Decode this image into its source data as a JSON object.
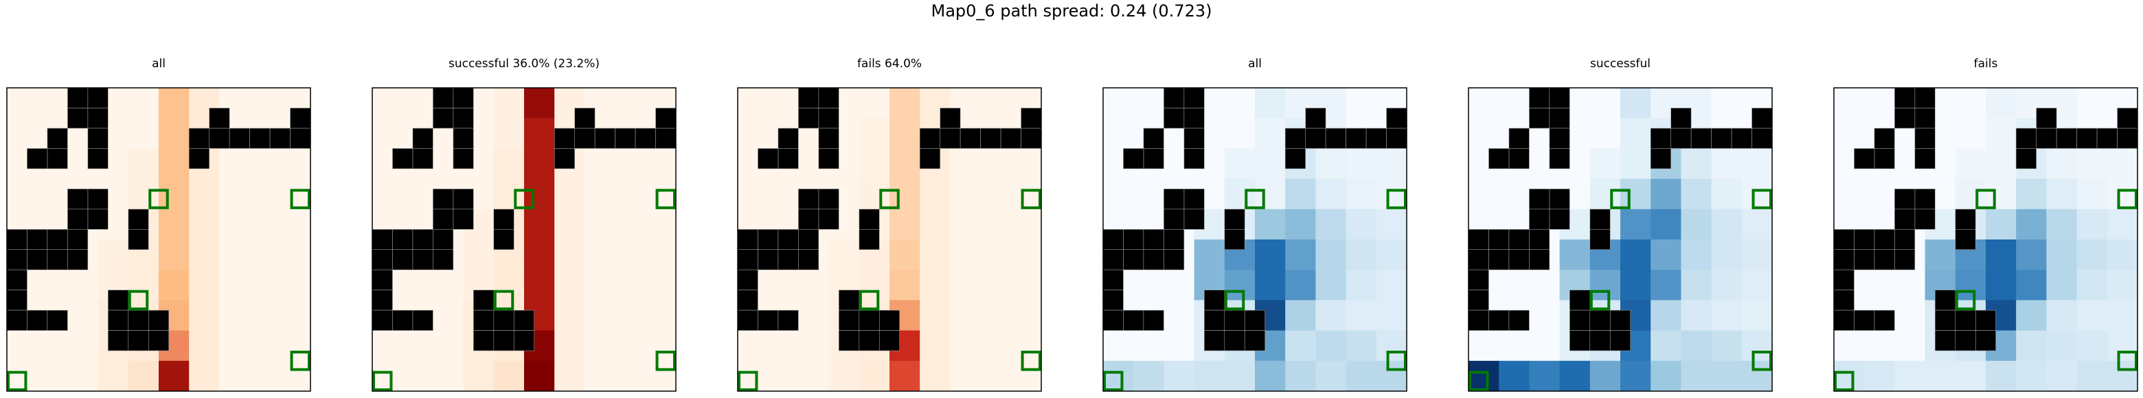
{
  "figure": {
    "title": "Map0_6 path spread: 0.24 (0.723)"
  },
  "palette": {
    "obstacle": "#000000",
    "goal_outline": "#007a00",
    "cell_separator": "#9a9a9a",
    "axes_frame": "#000000",
    "oranges_low": "#fff5eb",
    "oranges_mid": "#fdbe85",
    "oranges_high": "#d7301f",
    "oranges_max": "#7f0000",
    "blues_low": "#f7fbff",
    "blues_mid": "#9ecae1",
    "blues_high": "#2171b5",
    "blues_max": "#08306b"
  },
  "chart_data": [
    {
      "type": "heatmap",
      "title": "all",
      "colormap": "oranges",
      "rows": 10,
      "cols": 10,
      "obstacles": [
        [
          0,
          3
        ],
        [
          1,
          3
        ],
        [
          1,
          2
        ],
        [
          2,
          3
        ],
        [
          2,
          1
        ],
        [
          2,
          6
        ],
        [
          2,
          7
        ],
        [
          2,
          8
        ],
        [
          2,
          9
        ],
        [
          1,
          9
        ],
        [
          3,
          0
        ],
        [
          5,
          2
        ],
        [
          6,
          2
        ],
        [
          5,
          4
        ],
        [
          6,
          0
        ],
        [
          6,
          1
        ],
        [
          7,
          0
        ],
        [
          8,
          0
        ],
        [
          8,
          1
        ],
        [
          8,
          3
        ],
        [
          9,
          3
        ],
        [
          9,
          4
        ],
        [
          10,
          3
        ],
        [
          10,
          4
        ],
        [
          10,
          2
        ],
        [
          11,
          5
        ],
        [
          11,
          6
        ],
        [
          11,
          7
        ],
        [
          11,
          8
        ],
        [
          11,
          9
        ],
        [
          1,
          6
        ]
      ],
      "goals": [
        [
          3,
          5
        ],
        [
          6,
          9
        ],
        [
          4,
          9
        ],
        [
          12,
          0
        ]
      ],
      "values": [
        [
          0,
          0,
          0,
          0,
          0,
          3,
          0.6,
          0,
          0,
          0
        ],
        [
          0,
          0,
          0,
          0,
          0,
          3,
          0.6,
          0,
          0,
          0
        ],
        [
          0,
          0,
          0,
          0,
          0.3,
          3,
          0.6,
          0,
          0,
          0
        ],
        [
          0,
          0,
          0,
          0,
          0.3,
          3,
          0.6,
          0,
          0,
          0
        ],
        [
          0,
          0,
          0,
          0,
          0.5,
          3,
          0.6,
          0,
          0,
          0
        ],
        [
          0,
          0,
          0,
          0.3,
          0.5,
          3,
          0.6,
          0,
          0,
          0
        ],
        [
          0,
          0,
          0,
          0.3,
          0.5,
          3.3,
          0.6,
          0,
          0,
          0
        ],
        [
          0,
          0,
          0,
          0.5,
          0.6,
          3.5,
          0.6,
          0,
          0,
          0
        ],
        [
          0,
          0,
          0,
          0.5,
          0.6,
          4.5,
          0.6,
          0,
          0,
          0
        ],
        [
          0,
          0,
          0,
          0.5,
          1,
          8.5,
          0.6,
          0,
          0,
          0
        ]
      ]
    },
    {
      "type": "heatmap",
      "title": "successful 36.0% (23.2%)",
      "colormap": "oranges",
      "rows": 10,
      "cols": 10,
      "values": [
        [
          0,
          0,
          0,
          0,
          0.3,
          9,
          0.3,
          0,
          0,
          0
        ],
        [
          0,
          0,
          0,
          0,
          0.3,
          8,
          0.3,
          0,
          0,
          0
        ],
        [
          0,
          0,
          0,
          0,
          0.5,
          8,
          0.3,
          0,
          0,
          0
        ],
        [
          0,
          0,
          0,
          0,
          0.5,
          8,
          0.3,
          0,
          0,
          0
        ],
        [
          0,
          0,
          0,
          0.3,
          0.6,
          8,
          0.3,
          0,
          0,
          0
        ],
        [
          0,
          0,
          0,
          0.3,
          0.6,
          8,
          0.3,
          0,
          0,
          0
        ],
        [
          0,
          0,
          0,
          0.3,
          0.6,
          8,
          0.3,
          0,
          0,
          0
        ],
        [
          0,
          0,
          0,
          0.5,
          0.6,
          8,
          0.3,
          0,
          0,
          0
        ],
        [
          0,
          0,
          0,
          0.5,
          0.6,
          9.5,
          0.3,
          0,
          0,
          0
        ],
        [
          0,
          0,
          0,
          0.5,
          1,
          9.8,
          0.3,
          0,
          0,
          0
        ]
      ]
    },
    {
      "type": "heatmap",
      "title": "fails 64.0%",
      "colormap": "oranges",
      "rows": 10,
      "cols": 10,
      "values": [
        [
          0,
          0,
          0,
          0,
          0,
          2,
          0.5,
          0,
          0,
          0
        ],
        [
          0,
          0,
          0,
          0,
          0.2,
          2,
          0.5,
          0,
          0,
          0
        ],
        [
          0,
          0,
          0,
          0,
          0.2,
          2,
          0.5,
          0,
          0,
          0
        ],
        [
          0,
          0,
          0,
          0,
          0.3,
          2,
          0.5,
          0,
          0,
          0
        ],
        [
          0,
          0,
          0,
          0,
          0.3,
          2,
          0.5,
          0,
          0,
          0
        ],
        [
          0,
          0,
          0,
          0.2,
          0.4,
          2.3,
          0.5,
          0,
          0,
          0
        ],
        [
          0,
          0,
          0,
          0.2,
          0.4,
          2.6,
          0.5,
          0,
          0,
          0
        ],
        [
          0,
          0,
          0,
          0.3,
          0.5,
          4,
          0.5,
          0,
          0,
          0
        ],
        [
          0,
          0,
          0,
          0.3,
          0.5,
          7,
          0.5,
          0,
          0,
          0
        ],
        [
          0,
          0,
          0,
          0.3,
          0.6,
          6,
          0.5,
          0,
          0,
          0
        ]
      ]
    },
    {
      "type": "heatmap",
      "title": "all",
      "colormap": "blues",
      "rows": 10,
      "cols": 10,
      "values": [
        [
          0,
          0,
          0,
          0,
          0,
          0.5,
          0.3,
          0.3,
          0,
          0
        ],
        [
          0,
          0,
          0,
          0,
          0,
          0.3,
          0.5,
          0.3,
          0,
          0
        ],
        [
          0,
          0,
          0,
          0,
          0.3,
          0.3,
          0.8,
          0.4,
          0.3,
          0.3
        ],
        [
          0,
          0,
          0,
          0,
          0.5,
          0.3,
          1.4,
          0.6,
          0.4,
          0.3
        ],
        [
          0,
          0,
          0,
          0.5,
          0.6,
          2.2,
          2.5,
          1.4,
          0.8,
          0.6
        ],
        [
          0,
          0,
          0,
          2.6,
          3.5,
          4.5,
          3.2,
          1.6,
          1,
          0.8
        ],
        [
          0,
          0,
          0,
          2.6,
          3.2,
          4.5,
          3.5,
          1.6,
          0.8,
          0.6
        ],
        [
          0,
          0,
          0,
          0.6,
          0.9,
          5.5,
          1.8,
          0.8,
          0.6,
          0.6
        ],
        [
          0,
          0,
          0,
          0.6,
          0.9,
          3.2,
          1.1,
          1.4,
          1.2,
          0.8
        ],
        [
          1.5,
          1.3,
          0.9,
          1,
          1,
          2.5,
          1.5,
          1.2,
          1.5,
          1.5
        ]
      ]
    },
    {
      "type": "heatmap",
      "title": "successful",
      "colormap": "blues",
      "rows": 10,
      "cols": 10,
      "values": [
        [
          0,
          0,
          0,
          0,
          0,
          0.9,
          0.3,
          0.3,
          0,
          0
        ],
        [
          0,
          0,
          0,
          0,
          0,
          0.5,
          0.6,
          0.3,
          0,
          0
        ],
        [
          0,
          0,
          0,
          0,
          0.3,
          0.5,
          2,
          0.7,
          0.3,
          0.3
        ],
        [
          0,
          0,
          0,
          0,
          0.5,
          1.5,
          3,
          1.2,
          0.5,
          0.3
        ],
        [
          0,
          0,
          0,
          0.5,
          0.7,
          3.5,
          3.8,
          1.5,
          0.9,
          0.6
        ],
        [
          0,
          0,
          0,
          2.6,
          3.5,
          4.5,
          3,
          1.4,
          0.9,
          0.7
        ],
        [
          0,
          0,
          0,
          2,
          3,
          4.5,
          3.5,
          1.2,
          0.8,
          0.6
        ],
        [
          0,
          0,
          0,
          0.5,
          0.8,
          4.8,
          1.6,
          0.8,
          0.6,
          0.5
        ],
        [
          0,
          0,
          0,
          0.5,
          0.8,
          4.2,
          1.2,
          1.4,
          1.2,
          0.8
        ],
        [
          6.5,
          4.5,
          4,
          4.5,
          3,
          4,
          2.2,
          1.5,
          1.5,
          1.5
        ]
      ]
    },
    {
      "type": "heatmap",
      "title": "fails",
      "colormap": "blues",
      "rows": 10,
      "cols": 10,
      "values": [
        [
          0,
          0,
          0,
          0,
          0,
          0.3,
          0.2,
          0.2,
          0,
          0
        ],
        [
          0,
          0,
          0,
          0,
          0,
          0.2,
          0.5,
          0.2,
          0,
          0
        ],
        [
          0,
          0,
          0,
          0,
          0.2,
          0.2,
          0.6,
          0.3,
          0.2,
          0.2
        ],
        [
          0,
          0,
          0,
          0,
          0.3,
          0.2,
          1.2,
          0.6,
          0.3,
          0.2
        ],
        [
          0,
          0,
          0,
          0.5,
          0.7,
          1.5,
          2.8,
          1.5,
          0.8,
          0.6
        ],
        [
          0,
          0,
          0,
          2.7,
          3.5,
          4.6,
          3.4,
          1.6,
          1.1,
          0.9
        ],
        [
          0,
          0,
          0,
          2.8,
          3.6,
          4.6,
          3.8,
          1.6,
          0.9,
          0.7
        ],
        [
          0,
          0,
          0,
          0.7,
          1,
          5.4,
          1.9,
          0.8,
          0.6,
          0.6
        ],
        [
          0,
          0,
          0,
          0.7,
          0.9,
          2.8,
          1,
          0.9,
          0.8,
          0.6
        ],
        [
          0.9,
          0.8,
          0.6,
          0.6,
          0.6,
          1.1,
          0.9,
          0.8,
          1,
          1
        ]
      ]
    }
  ]
}
